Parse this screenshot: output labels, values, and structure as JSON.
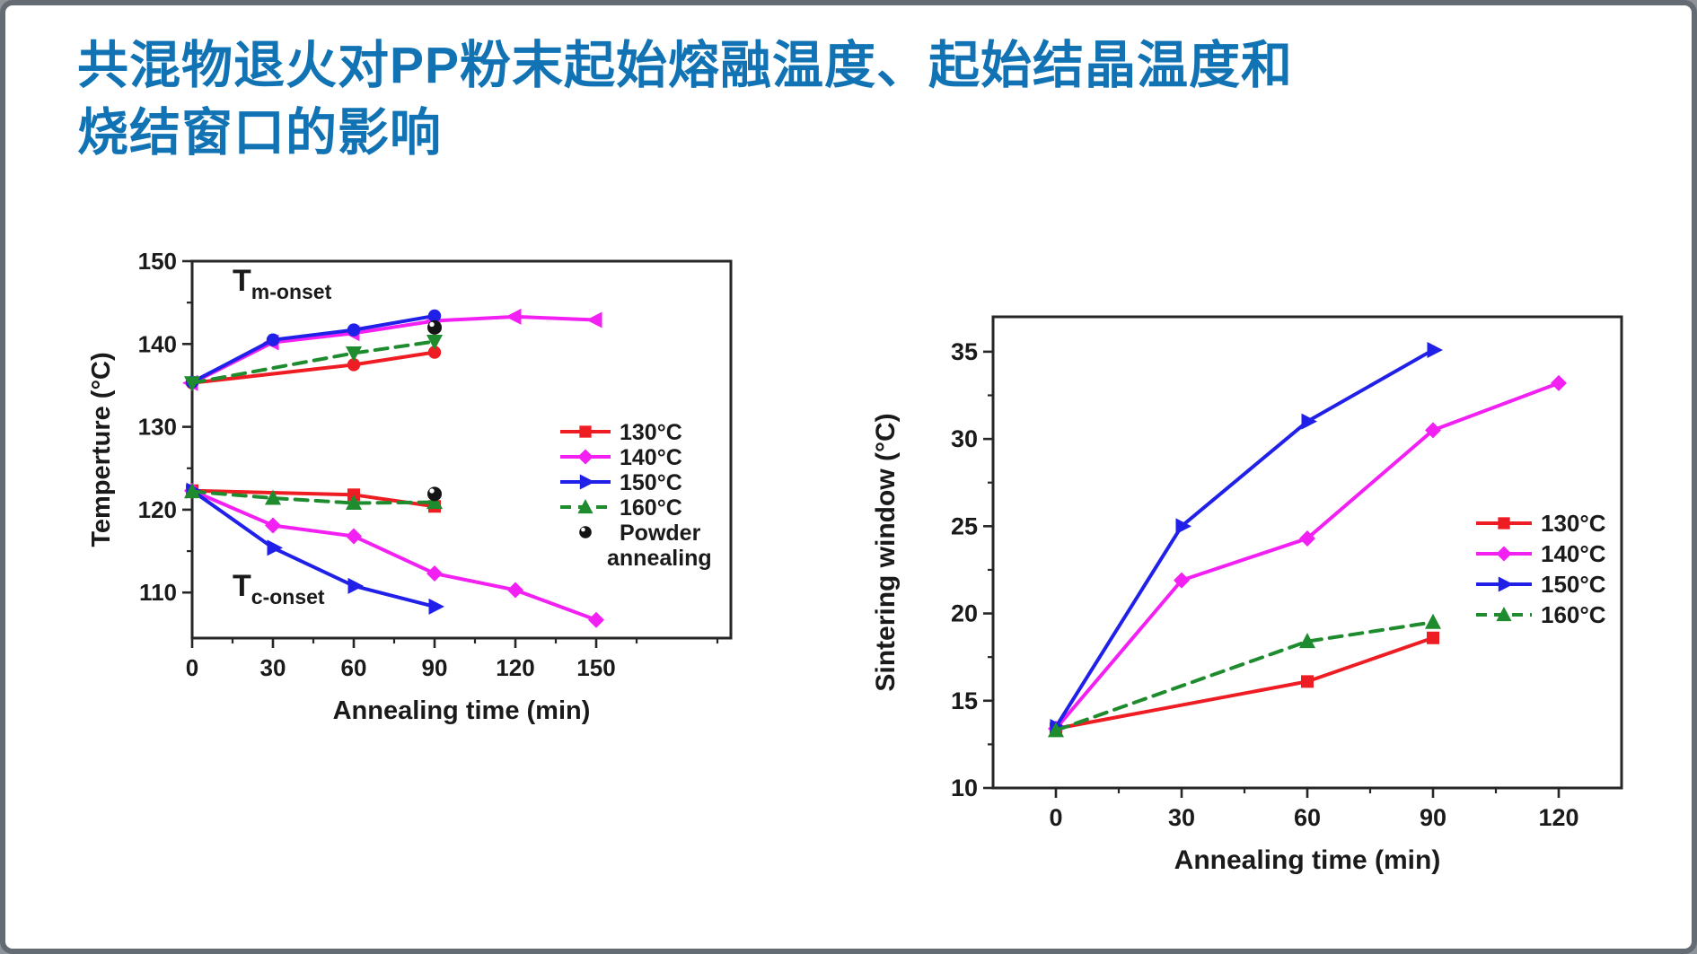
{
  "slide": {
    "title_line1": "共混物退火对PP粉末起始熔融温度、起始结晶温度和",
    "title_line2": "烧结窗口的影响",
    "title_color": "#1173b4"
  },
  "colors": {
    "series_130C": "#ee1d23",
    "series_140C": "#f320f3",
    "series_150C": "#2020e8",
    "series_160C": "#1e8c2e",
    "powder": "#141414",
    "axis": "#262626",
    "text": "#1a1a1a"
  },
  "chart_data": [
    {
      "type": "line",
      "title": "",
      "xlabel": "Annealing time (min)",
      "ylabel": "Temperture (°C)",
      "xlim": [
        0,
        200
      ],
      "ylim": [
        104.5,
        150
      ],
      "xticks": [
        0,
        30,
        60,
        90,
        120,
        150
      ],
      "xminor": [
        15,
        45,
        75,
        105,
        135,
        165,
        195
      ],
      "yticks": [
        110,
        120,
        130,
        140,
        150
      ],
      "yminor": [
        115,
        125,
        135,
        145
      ],
      "grid": false,
      "legend_position": "inside-right-center",
      "annotations": [
        {
          "main": "T",
          "sub": "m-onset"
        },
        {
          "main": "T",
          "sub": "c-onset"
        }
      ],
      "series": [
        {
          "name": "130°C",
          "subset": "Tm-onset",
          "color": "#ee1d23",
          "marker": "circle",
          "linestyle": "solid",
          "points": [
            [
              0,
              135.3
            ],
            [
              60,
              137.5
            ],
            [
              90,
              139.0
            ]
          ]
        },
        {
          "name": "140°C",
          "subset": "Tm-onset",
          "color": "#f320f3",
          "marker": "triangle-left",
          "linestyle": "solid",
          "points": [
            [
              0,
              135.3
            ],
            [
              30,
              140.2
            ],
            [
              60,
              141.3
            ],
            [
              90,
              142.8
            ],
            [
              120,
              143.3
            ],
            [
              150,
              142.9
            ]
          ]
        },
        {
          "name": "150°C",
          "subset": "Tm-onset",
          "color": "#2020e8",
          "marker": "circle",
          "linestyle": "solid",
          "points": [
            [
              0,
              135.4
            ],
            [
              30,
              140.5
            ],
            [
              60,
              141.7
            ],
            [
              90,
              143.4
            ]
          ]
        },
        {
          "name": "160°C",
          "subset": "Tm-onset",
          "color": "#1e8c2e",
          "marker": "triangle-down",
          "linestyle": "dashed",
          "points": [
            [
              0,
              135.3
            ],
            [
              60,
              138.9
            ],
            [
              90,
              140.3
            ]
          ]
        },
        {
          "name": "Powder annealing",
          "subset": "Tm-onset",
          "color": "#141414",
          "marker": "sphere",
          "linestyle": "none",
          "points": [
            [
              90,
              142.0
            ]
          ]
        },
        {
          "name": "130°C",
          "subset": "Tc-onset",
          "color": "#ee1d23",
          "marker": "square",
          "linestyle": "solid",
          "points": [
            [
              0,
              122.3
            ],
            [
              60,
              121.8
            ],
            [
              90,
              120.4
            ]
          ]
        },
        {
          "name": "140°C",
          "subset": "Tc-onset",
          "color": "#f320f3",
          "marker": "diamond",
          "linestyle": "solid",
          "points": [
            [
              0,
              122.3
            ],
            [
              30,
              118.1
            ],
            [
              60,
              116.8
            ],
            [
              90,
              112.3
            ],
            [
              120,
              110.3
            ],
            [
              150,
              106.7
            ]
          ]
        },
        {
          "name": "150°C",
          "subset": "Tc-onset",
          "color": "#2020e8",
          "marker": "triangle-right",
          "linestyle": "solid",
          "points": [
            [
              0,
              122.3
            ],
            [
              30,
              115.4
            ],
            [
              60,
              110.8
            ],
            [
              90,
              108.3
            ]
          ]
        },
        {
          "name": "160°C",
          "subset": "Tc-onset",
          "color": "#1e8c2e",
          "marker": "triangle-up",
          "linestyle": "dashed",
          "points": [
            [
              0,
              122.2
            ],
            [
              30,
              121.4
            ],
            [
              60,
              120.8
            ],
            [
              90,
              120.9
            ]
          ]
        },
        {
          "name": "Powder annealing",
          "subset": "Tc-onset",
          "color": "#141414",
          "marker": "sphere",
          "linestyle": "none",
          "points": [
            [
              90,
              121.9
            ]
          ]
        }
      ],
      "legend": [
        {
          "label": "130°C",
          "color": "#ee1d23",
          "marker": "square",
          "linestyle": "solid"
        },
        {
          "label": "140°C",
          "color": "#f320f3",
          "marker": "diamond",
          "linestyle": "solid"
        },
        {
          "label": "150°C",
          "color": "#2020e8",
          "marker": "triangle-right",
          "linestyle": "solid"
        },
        {
          "label": "160°C",
          "color": "#1e8c2e",
          "marker": "triangle-up",
          "linestyle": "dashed"
        },
        {
          "label": "Powder",
          "label2": "annealing",
          "color": "#141414",
          "marker": "sphere",
          "linestyle": "none"
        }
      ]
    },
    {
      "type": "line",
      "title": "",
      "xlabel": "Annealing time (min)",
      "ylabel": "Sintering window (°C)",
      "xlim": [
        -15,
        135
      ],
      "ylim": [
        10,
        37
      ],
      "xticks": [
        0,
        30,
        60,
        90,
        120
      ],
      "xminor": [
        15,
        45,
        75,
        105
      ],
      "yticks": [
        10,
        15,
        20,
        25,
        30,
        35
      ],
      "yminor": [
        12.5,
        17.5,
        22.5,
        27.5,
        32.5
      ],
      "grid": false,
      "legend_position": "inside-right-center",
      "annotations": [],
      "series": [
        {
          "name": "130°C",
          "subset": "",
          "color": "#ee1d23",
          "marker": "square",
          "linestyle": "solid",
          "points": [
            [
              0,
              13.4
            ],
            [
              60,
              16.1
            ],
            [
              90,
              18.6
            ]
          ]
        },
        {
          "name": "140°C",
          "subset": "",
          "color": "#f320f3",
          "marker": "diamond",
          "linestyle": "solid",
          "points": [
            [
              0,
              13.4
            ],
            [
              30,
              21.9
            ],
            [
              60,
              24.3
            ],
            [
              90,
              30.5
            ],
            [
              120,
              33.2
            ]
          ]
        },
        {
          "name": "150°C",
          "subset": "",
          "color": "#2020e8",
          "marker": "triangle-right",
          "linestyle": "solid",
          "points": [
            [
              0,
              13.5
            ],
            [
              30,
              25.0
            ],
            [
              60,
              31.0
            ],
            [
              90,
              35.1
            ]
          ]
        },
        {
          "name": "160°C",
          "subset": "",
          "color": "#1e8c2e",
          "marker": "triangle-up",
          "linestyle": "dashed",
          "points": [
            [
              0,
              13.3
            ],
            [
              60,
              18.4
            ],
            [
              90,
              19.5
            ]
          ]
        }
      ],
      "legend": [
        {
          "label": "130°C",
          "color": "#ee1d23",
          "marker": "square",
          "linestyle": "solid"
        },
        {
          "label": "140°C",
          "color": "#f320f3",
          "marker": "diamond",
          "linestyle": "solid"
        },
        {
          "label": "150°C",
          "color": "#2020e8",
          "marker": "triangle-right",
          "linestyle": "solid"
        },
        {
          "label": "160°C",
          "color": "#1e8c2e",
          "marker": "triangle-up",
          "linestyle": "dashed"
        }
      ]
    }
  ]
}
